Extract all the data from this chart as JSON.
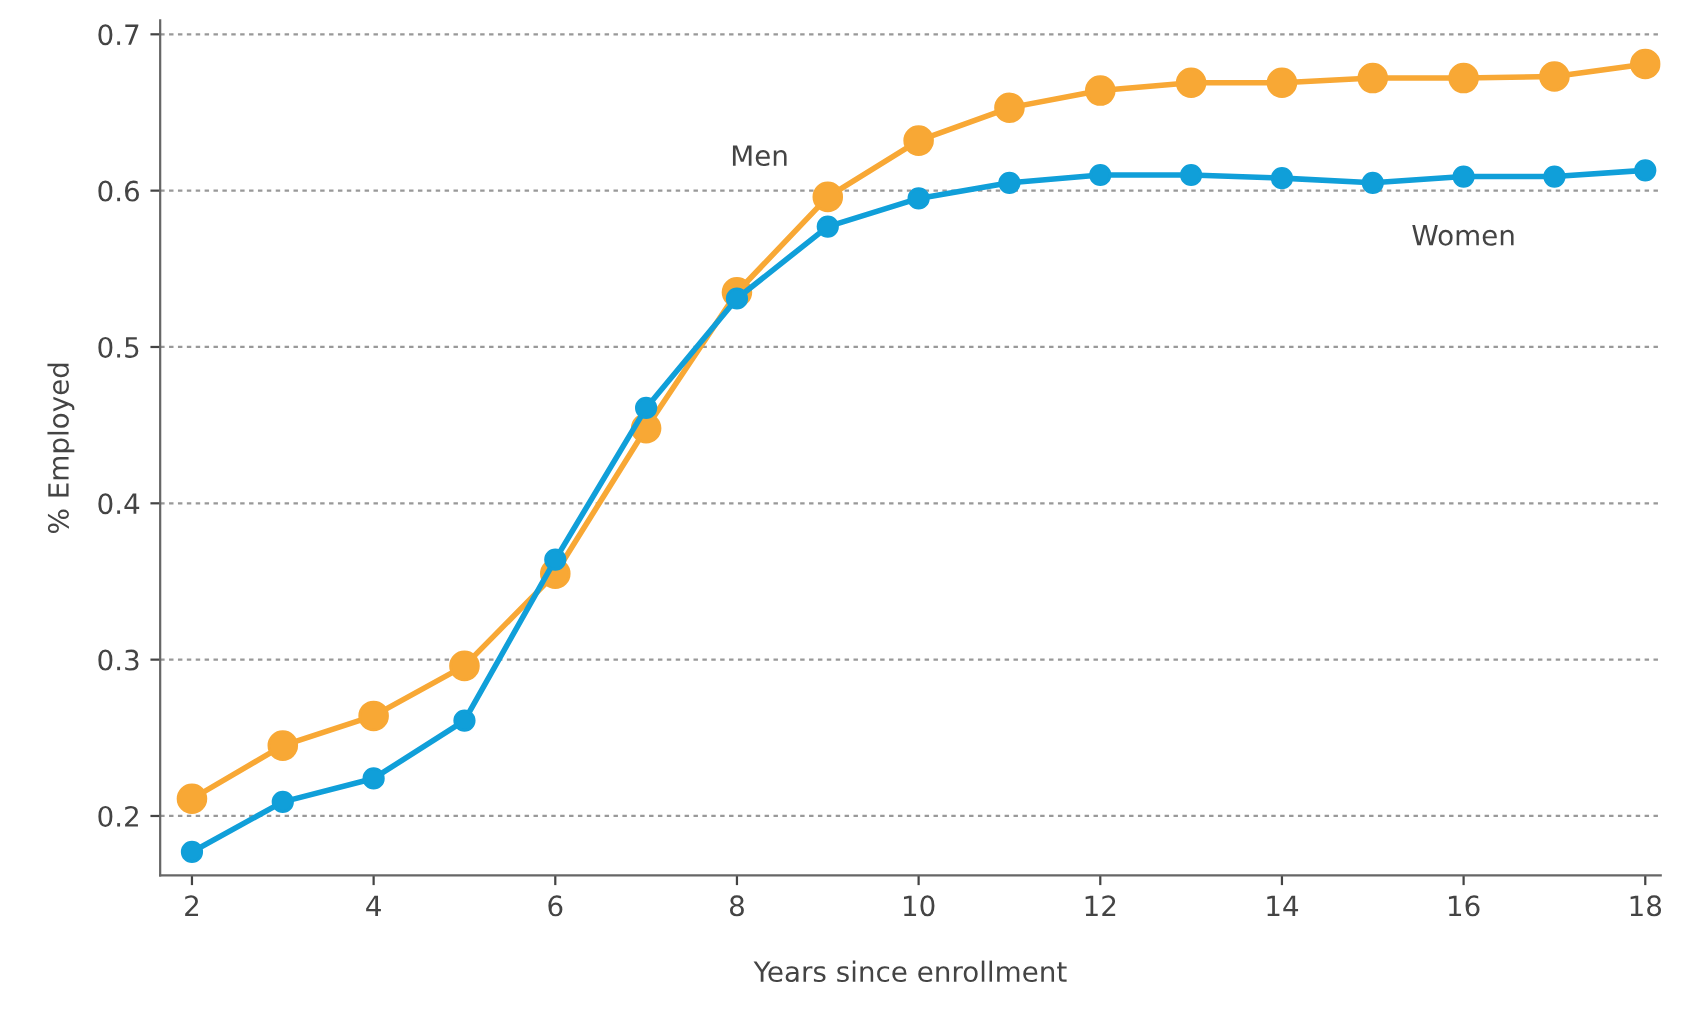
{
  "chart_data": {
    "type": "line",
    "xlabel": "Years since enrollment",
    "ylabel": "% Employed",
    "x": [
      2,
      3,
      4,
      5,
      6,
      7,
      8,
      9,
      10,
      11,
      12,
      13,
      14,
      15,
      16,
      17,
      18
    ],
    "series": [
      {
        "name": "Men",
        "color": "#f8a835",
        "values": [
          0.211,
          0.245,
          0.264,
          0.296,
          0.355,
          0.448,
          0.535,
          0.596,
          0.632,
          0.653,
          0.664,
          0.669,
          0.669,
          0.672,
          0.672,
          0.673,
          0.681
        ]
      },
      {
        "name": "Women",
        "color": "#109fd9",
        "values": [
          0.177,
          0.209,
          0.224,
          0.261,
          0.364,
          0.461,
          0.531,
          0.577,
          0.595,
          0.605,
          0.61,
          0.61,
          0.608,
          0.605,
          0.609,
          0.609,
          0.613
        ]
      }
    ],
    "xlim": [
      1.65,
      18.17
    ],
    "xticks": [
      2,
      4,
      6,
      8,
      10,
      12,
      14,
      16,
      18
    ],
    "ylim": [
      0.162,
      0.709
    ],
    "yticks": [
      0.2,
      0.3,
      0.4,
      0.5,
      0.6,
      0.7
    ],
    "grid": "y",
    "legend": false,
    "marker": "circle",
    "line_style": "solid"
  }
}
